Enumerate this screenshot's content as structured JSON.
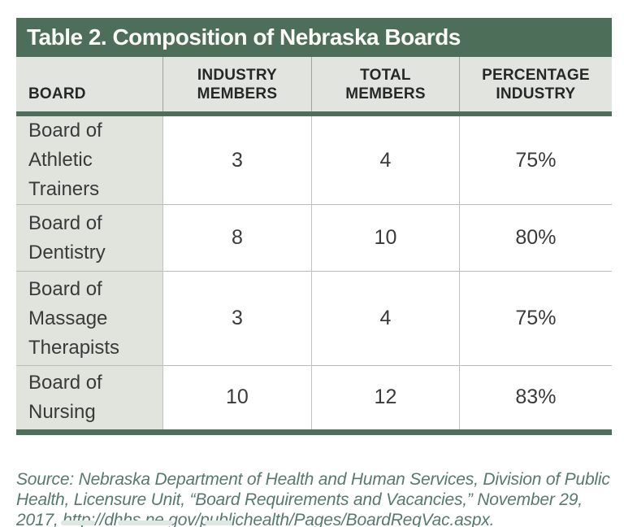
{
  "table": {
    "title": "Table 2. Composition of Nebraska Boards",
    "columns": [
      "BOARD",
      "INDUSTRY MEMBERS",
      "TOTAL MEMBERS",
      "PERCENTAGE INDUSTRY"
    ],
    "rows": [
      {
        "board": "Board of Athletic Trainers",
        "industry": "3",
        "total": "4",
        "percentage": "75%"
      },
      {
        "board": "Board of Dentistry",
        "industry": "8",
        "total": "10",
        "percentage": "80%"
      },
      {
        "board": "Board of Massage Therapists",
        "industry": "3",
        "total": "4",
        "percentage": "75%"
      },
      {
        "board": "Board of Nursing",
        "industry": "10",
        "total": "12",
        "percentage": "83%"
      }
    ]
  },
  "source": "Source: Nebraska Department of Health and Human Services, Division of Public Health, Licensure Unit, “Board Requirements and Vacancies,” November 29, 2017, http://dhhs.ne.gov/publichealth/Pages/BoardReqVac.aspx.",
  "colors": {
    "accent_green": "#4d6f5a",
    "header_row_bg": "#e2e5df",
    "first_col_bg": "#e0e4dd",
    "source_text": "#567a6c"
  },
  "chart_data": {
    "type": "table",
    "title": "Table 2. Composition of Nebraska Boards",
    "columns": [
      "BOARD",
      "INDUSTRY MEMBERS",
      "TOTAL MEMBERS",
      "PERCENTAGE INDUSTRY"
    ],
    "rows": [
      [
        "Board of Athletic Trainers",
        3,
        4,
        "75%"
      ],
      [
        "Board of Dentistry",
        8,
        10,
        "80%"
      ],
      [
        "Board of Massage Therapists",
        3,
        4,
        "75%"
      ],
      [
        "Board of Nursing",
        10,
        12,
        "83%"
      ]
    ]
  }
}
